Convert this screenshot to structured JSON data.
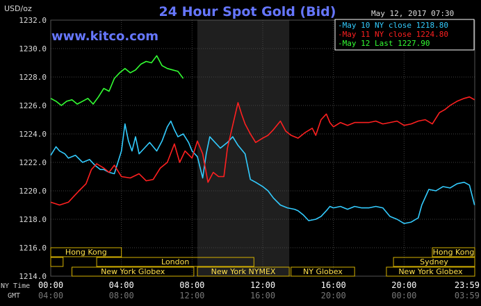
{
  "chart_data": {
    "type": "line",
    "title": "24 Hour Spot Gold (Bid)",
    "ylabel": "USD/oz",
    "watermark": "www.kitco.com",
    "timestamp": "May 12, 2017 07:30",
    "ylim": [
      1214,
      1232
    ],
    "yticks": [
      "1232.0",
      "1230.0",
      "1228.0",
      "1226.0",
      "1224.0",
      "1222.0",
      "1220.0",
      "1218.0",
      "1216.0",
      "1214.0"
    ],
    "ytick_values": [
      1232,
      1230,
      1228,
      1226,
      1224,
      1222,
      1220,
      1218,
      1216,
      1214
    ],
    "xlim_hours": [
      0,
      24
    ],
    "x_row_labels": {
      "ny": "NY Time",
      "gmt": "GMT"
    },
    "xticks_ny": [
      "00:00",
      "04:00",
      "08:00",
      "12:00",
      "16:00",
      "20:00",
      "23:59"
    ],
    "xticks_gmt": [
      "04:00",
      "08:00",
      "12:00",
      "16:00",
      "20:00",
      "00:00",
      "03:59"
    ],
    "xtick_hours": [
      0,
      4,
      8,
      12,
      16,
      20,
      24
    ],
    "highlight_hours": [
      8.3,
      13.5
    ],
    "colors": {
      "may10": "#33ccff",
      "may11": "#ff2020",
      "may12": "#33ff33",
      "title": "#6677ff",
      "session_border": "#d4b000",
      "session_text": "#ffe14d",
      "grid": "#444444",
      "axis_text": "#dddddd"
    },
    "legend": [
      {
        "label": "May 10 NY close 1218.80",
        "color": "#33ccff"
      },
      {
        "label": "May 11 NY close 1224.80",
        "color": "#ff2020"
      },
      {
        "label": "May 12 Last 1227.90",
        "color": "#33ff33"
      }
    ],
    "series": [
      {
        "name": "May 10 NY close 1218.80",
        "color": "#33ccff",
        "x": [
          0,
          0.3,
          0.5,
          0.8,
          1,
          1.4,
          1.8,
          2.2,
          2.5,
          2.8,
          3,
          3.3,
          3.6,
          4,
          4.2,
          4.4,
          4.6,
          4.8,
          5,
          5.3,
          5.6,
          6,
          6.3,
          6.6,
          6.8,
          7,
          7.2,
          7.5,
          7.8,
          8,
          8.3,
          8.6,
          8.8,
          9,
          9.3,
          9.6,
          10,
          10.3,
          10.6,
          11,
          11.3,
          11.6,
          12,
          12.3,
          12.6,
          13,
          13.4,
          13.8,
          14,
          14.3,
          14.6,
          15,
          15.3,
          15.6,
          15.8,
          16,
          16.4,
          16.8,
          17.2,
          17.6,
          18,
          18.4,
          18.8,
          19.2,
          19.6,
          20,
          20.4,
          20.8,
          21,
          21.4,
          21.8,
          22.2,
          22.6,
          23,
          23.4,
          23.7,
          23.99
        ],
        "y": [
          1222.5,
          1223.1,
          1222.8,
          1222.6,
          1222.3,
          1222.5,
          1222.0,
          1222.2,
          1221.8,
          1221.5,
          1221.5,
          1221.3,
          1221.2,
          1222.8,
          1224.7,
          1223.5,
          1222.8,
          1223.8,
          1222.6,
          1223.0,
          1223.4,
          1222.8,
          1223.5,
          1224.5,
          1224.9,
          1224.3,
          1223.8,
          1224.0,
          1223.4,
          1222.8,
          1222.4,
          1220.9,
          1222.6,
          1223.8,
          1223.4,
          1223.0,
          1223.4,
          1223.8,
          1223.2,
          1222.6,
          1220.8,
          1220.6,
          1220.3,
          1220.0,
          1219.5,
          1219.0,
          1218.8,
          1218.7,
          1218.6,
          1218.3,
          1217.9,
          1218.0,
          1218.2,
          1218.6,
          1218.9,
          1218.8,
          1218.9,
          1218.7,
          1218.9,
          1218.8,
          1218.8,
          1218.9,
          1218.8,
          1218.2,
          1218.0,
          1217.7,
          1217.8,
          1218.1,
          1219.0,
          1220.1,
          1220.0,
          1220.3,
          1220.2,
          1220.5,
          1220.6,
          1220.4,
          1219.0
        ]
      },
      {
        "name": "May 11 NY close 1224.80",
        "color": "#ff2020",
        "x": [
          0,
          0.5,
          1,
          1.3,
          1.6,
          2,
          2.3,
          2.6,
          3,
          3.3,
          3.6,
          4,
          4.5,
          5,
          5.4,
          5.8,
          6.2,
          6.6,
          7,
          7.3,
          7.6,
          8,
          8.3,
          8.6,
          8.9,
          9.2,
          9.5,
          9.8,
          10,
          10.3,
          10.6,
          10.8,
          11,
          11.3,
          11.6,
          12,
          12.3,
          12.6,
          13,
          13.3,
          13.6,
          14,
          14.4,
          14.8,
          15,
          15.3,
          15.6,
          15.8,
          16,
          16.4,
          16.8,
          17.2,
          17.6,
          18,
          18.4,
          18.8,
          19.2,
          19.6,
          20,
          20.4,
          20.8,
          21.2,
          21.6,
          22,
          22.3,
          22.6,
          23,
          23.4,
          23.7,
          23.99
        ],
        "y": [
          1219.2,
          1219.0,
          1219.2,
          1219.6,
          1220.0,
          1220.5,
          1221.5,
          1221.9,
          1221.6,
          1221.3,
          1221.8,
          1221.0,
          1220.9,
          1221.2,
          1220.7,
          1220.8,
          1221.6,
          1222.0,
          1223.3,
          1222.0,
          1222.8,
          1222.3,
          1223.5,
          1222.6,
          1220.6,
          1221.3,
          1221.0,
          1221.0,
          1223.0,
          1224.6,
          1226.2,
          1225.4,
          1224.7,
          1224.0,
          1223.4,
          1223.7,
          1223.9,
          1224.3,
          1224.9,
          1224.2,
          1223.9,
          1223.7,
          1224.1,
          1224.4,
          1223.9,
          1225.0,
          1225.4,
          1224.8,
          1224.5,
          1224.8,
          1224.6,
          1224.8,
          1224.8,
          1224.8,
          1224.9,
          1224.7,
          1224.8,
          1224.9,
          1224.6,
          1224.7,
          1224.9,
          1225.0,
          1224.7,
          1225.5,
          1225.7,
          1226.0,
          1226.3,
          1226.5,
          1226.6,
          1226.4
        ]
      },
      {
        "name": "May 12 Last 1227.90",
        "color": "#33ff33",
        "x": [
          0,
          0.3,
          0.6,
          0.9,
          1.2,
          1.5,
          1.8,
          2.1,
          2.4,
          2.7,
          3,
          3.3,
          3.6,
          3.9,
          4.2,
          4.5,
          4.8,
          5.1,
          5.4,
          5.7,
          6,
          6.3,
          6.6,
          6.9,
          7.2,
          7.5
        ],
        "y": [
          1226.5,
          1226.3,
          1226.0,
          1226.3,
          1226.4,
          1226.1,
          1226.3,
          1226.5,
          1226.1,
          1226.6,
          1227.2,
          1227.0,
          1227.9,
          1228.3,
          1228.6,
          1228.3,
          1228.5,
          1228.9,
          1229.1,
          1229.0,
          1229.5,
          1228.8,
          1228.6,
          1228.5,
          1228.4,
          1227.9
        ]
      }
    ],
    "sessions": [
      {
        "label": "Hong Kong",
        "start": 0,
        "end": 4,
        "row": 0
      },
      {
        "label": "",
        "start": 0,
        "end": 0.7,
        "row": 1
      },
      {
        "label": "London",
        "start": 2.6,
        "end": 11.5,
        "row": 1
      },
      {
        "label": "New York Globex",
        "start": 1.2,
        "end": 8.1,
        "row": 2
      },
      {
        "label": "New York NYMEX",
        "start": 8.3,
        "end": 13.5,
        "row": 2
      },
      {
        "label": "NY Globex",
        "start": 13.6,
        "end": 17.2,
        "row": 2
      },
      {
        "label": "Hong Kong",
        "start": 21.6,
        "end": 24,
        "row": 0
      },
      {
        "label": "Sydney",
        "start": 19.4,
        "end": 24,
        "row": 1
      },
      {
        "label": "New York Globex",
        "start": 19.0,
        "end": 24,
        "row": 2
      }
    ]
  }
}
